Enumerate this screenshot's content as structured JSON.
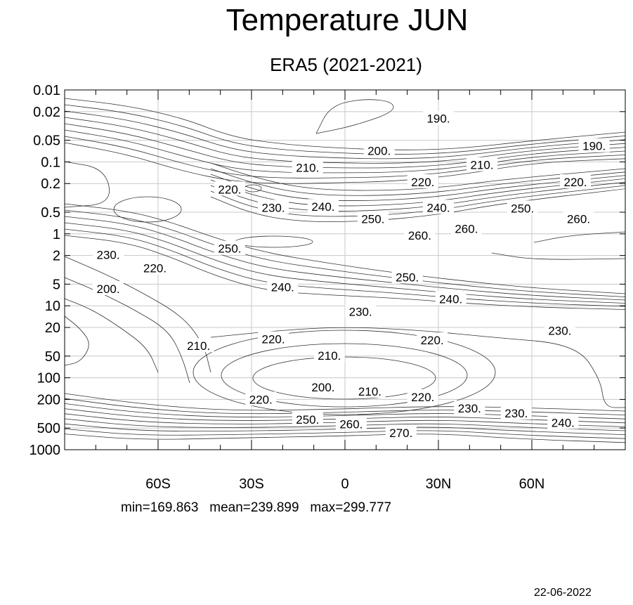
{
  "chart_data": {
    "type": "contour",
    "title": "Temperature JUN",
    "subtitle": "ERA5 (2021-2021)",
    "x_tick_labels": [
      "60S",
      "30S",
      "0",
      "30N",
      "60N"
    ],
    "x_tick_values": [
      -60,
      -30,
      0,
      30,
      60
    ],
    "xlim": [
      -90,
      90
    ],
    "y_tick_labels": [
      "0.01",
      "0.02",
      "0.05",
      "0.1",
      "0.2",
      "0.5",
      "1",
      "2",
      "5",
      "10",
      "20",
      "50",
      "100",
      "200",
      "500",
      "1000"
    ],
    "y_tick_values": [
      0.01,
      0.02,
      0.05,
      0.1,
      0.2,
      0.5,
      1,
      2,
      5,
      10,
      20,
      50,
      100,
      200,
      500,
      1000
    ],
    "ylim": [
      0.01,
      1000
    ],
    "y_scale": "log",
    "y_inverted": true,
    "grid": true,
    "stats": {
      "min": "min=169.863",
      "mean": "mean=239.899",
      "max": "max=299.777"
    },
    "contour_labels": [
      {
        "text": "190.",
        "lat": 30,
        "p": 0.025
      },
      {
        "text": "190.",
        "lat": 80,
        "p": 0.06
      },
      {
        "text": "200.",
        "lat": 11,
        "p": 0.07
      },
      {
        "text": "210.",
        "lat": -12,
        "p": 0.12
      },
      {
        "text": "210.",
        "lat": 44,
        "p": 0.11
      },
      {
        "text": "220.",
        "lat": 25,
        "p": 0.19
      },
      {
        "text": "220.",
        "lat": 74,
        "p": 0.19
      },
      {
        "text": "220.",
        "lat": -37,
        "p": 0.24
      },
      {
        "text": "230.",
        "lat": -23,
        "p": 0.43
      },
      {
        "text": "240.",
        "lat": -7,
        "p": 0.42
      },
      {
        "text": "240.",
        "lat": 30,
        "p": 0.43
      },
      {
        "text": "250.",
        "lat": 9,
        "p": 0.62
      },
      {
        "text": "250.",
        "lat": 57,
        "p": 0.44
      },
      {
        "text": "260.",
        "lat": 75,
        "p": 0.62
      },
      {
        "text": "260.",
        "lat": 24,
        "p": 1.05
      },
      {
        "text": "260.",
        "lat": 39,
        "p": 0.85
      },
      {
        "text": "250.",
        "lat": -37,
        "p": 1.6
      },
      {
        "text": "230.",
        "lat": -76,
        "p": 1.95
      },
      {
        "text": "220.",
        "lat": -61,
        "p": 3.0
      },
      {
        "text": "200.",
        "lat": -76,
        "p": 5.8
      },
      {
        "text": "240.",
        "lat": -20,
        "p": 5.5
      },
      {
        "text": "250.",
        "lat": 20,
        "p": 4.0
      },
      {
        "text": "240.",
        "lat": 34,
        "p": 8.0
      },
      {
        "text": "230.",
        "lat": 5,
        "p": 12.0
      },
      {
        "text": "230.",
        "lat": 69,
        "p": 22.0
      },
      {
        "text": "220.",
        "lat": -23,
        "p": 29.0
      },
      {
        "text": "220.",
        "lat": 28,
        "p": 30.0
      },
      {
        "text": "210.",
        "lat": -47,
        "p": 36.0
      },
      {
        "text": "210.",
        "lat": -5,
        "p": 49.0
      },
      {
        "text": "200.",
        "lat": -7,
        "p": 135.0
      },
      {
        "text": "210.",
        "lat": 8,
        "p": 155.0
      },
      {
        "text": "220.",
        "lat": -27,
        "p": 200.0
      },
      {
        "text": "220.",
        "lat": 25,
        "p": 185.0
      },
      {
        "text": "230.",
        "lat": 40,
        "p": 265.0
      },
      {
        "text": "230.",
        "lat": 55,
        "p": 310.0
      },
      {
        "text": "240.",
        "lat": 70,
        "p": 420.0
      },
      {
        "text": "250.",
        "lat": -12,
        "p": 380.0
      },
      {
        "text": "260.",
        "lat": 2,
        "p": 440.0
      },
      {
        "text": "270.",
        "lat": 18,
        "p": 580.0
      }
    ]
  },
  "footer": {
    "date": "22-06-2022"
  }
}
